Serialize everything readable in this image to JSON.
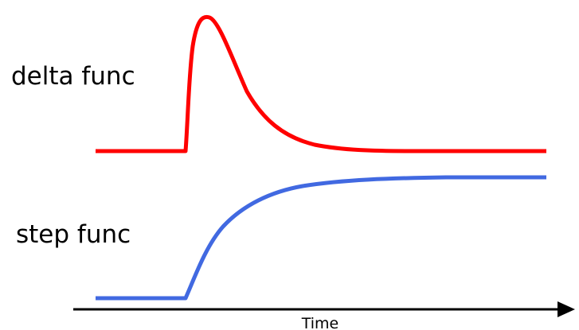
{
  "labels": {
    "delta": "delta func",
    "step": "step func",
    "time_axis": "Time"
  },
  "colors": {
    "delta_curve": "#ff0000",
    "step_curve": "#4169e1",
    "axis": "#000000",
    "background": "#ffffff"
  }
}
